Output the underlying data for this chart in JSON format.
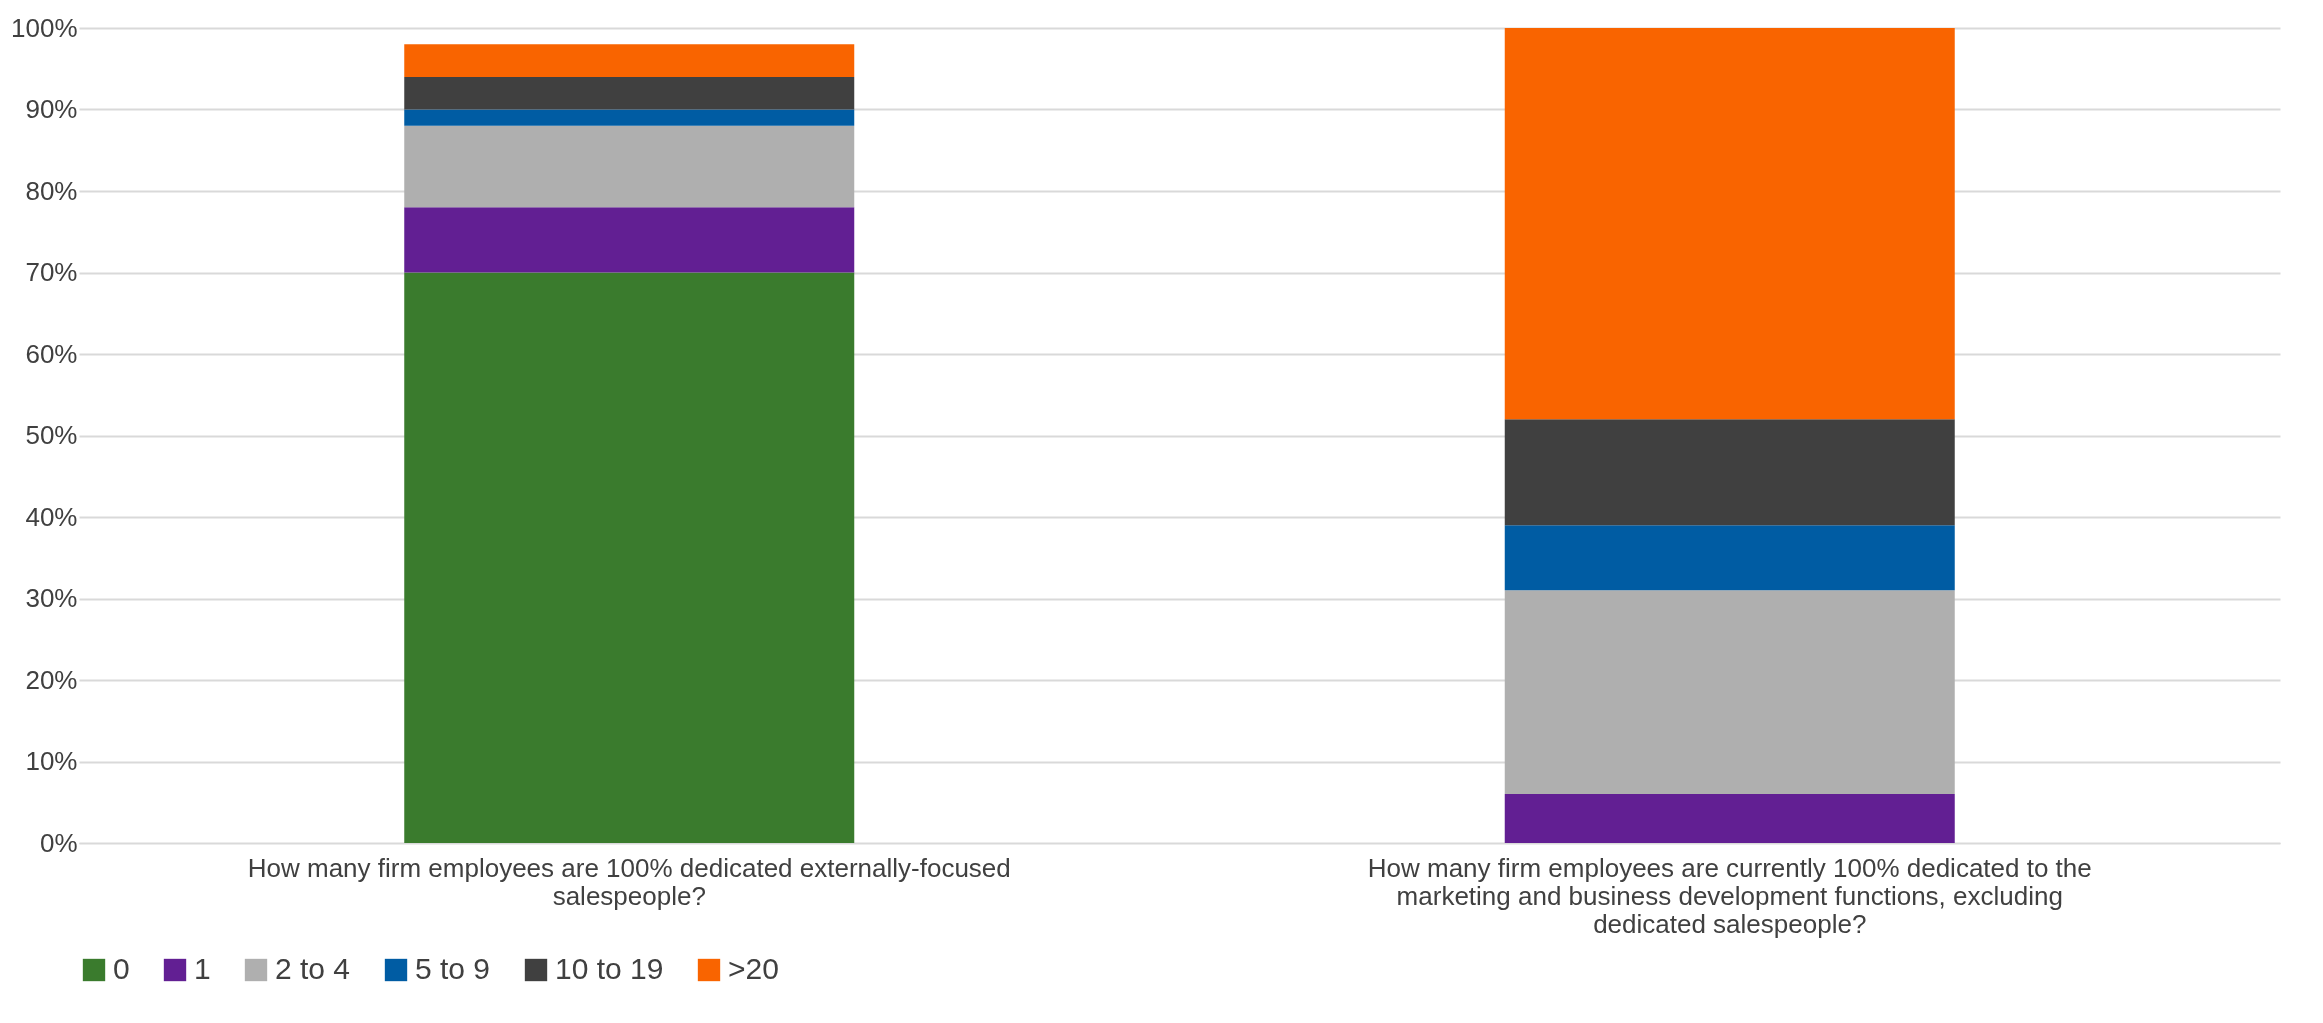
{
  "chart_data": {
    "type": "bar",
    "stacked": true,
    "categories": [
      "How many firm employees are 100% dedicated externally-focused salespeople?",
      "How many firm employees are currently 100% dedicated to the marketing and business development functions, excluding dedicated salespeople?"
    ],
    "series": [
      {
        "name": "0",
        "color": "#3a7b2d",
        "values": [
          70,
          0
        ]
      },
      {
        "name": "1",
        "color": "#621f93",
        "values": [
          8,
          6
        ]
      },
      {
        "name": "2 to 4",
        "color": "#afafaf",
        "values": [
          10,
          25
        ]
      },
      {
        "name": "5 to 9",
        "color": "#005ca3",
        "values": [
          2,
          8
        ]
      },
      {
        "name": "10 to 19",
        "color": "#404040",
        "values": [
          4,
          13
        ]
      },
      {
        "name": ">20",
        "color": "#f96400",
        "values": [
          4,
          48
        ]
      }
    ],
    "ylim": [
      0,
      100
    ],
    "yticks": [
      {
        "value": 0,
        "label": "0%"
      },
      {
        "value": 10,
        "label": "10%"
      },
      {
        "value": 20,
        "label": "20%"
      },
      {
        "value": 30,
        "label": "30%"
      },
      {
        "value": 40,
        "label": "40%"
      },
      {
        "value": 50,
        "label": "50%"
      },
      {
        "value": 60,
        "label": "60%"
      },
      {
        "value": 70,
        "label": "70%"
      },
      {
        "value": 80,
        "label": "80%"
      },
      {
        "value": 90,
        "label": "90%"
      },
      {
        "value": 100,
        "label": "100%"
      }
    ],
    "grid": "y",
    "legend": "bottom"
  }
}
